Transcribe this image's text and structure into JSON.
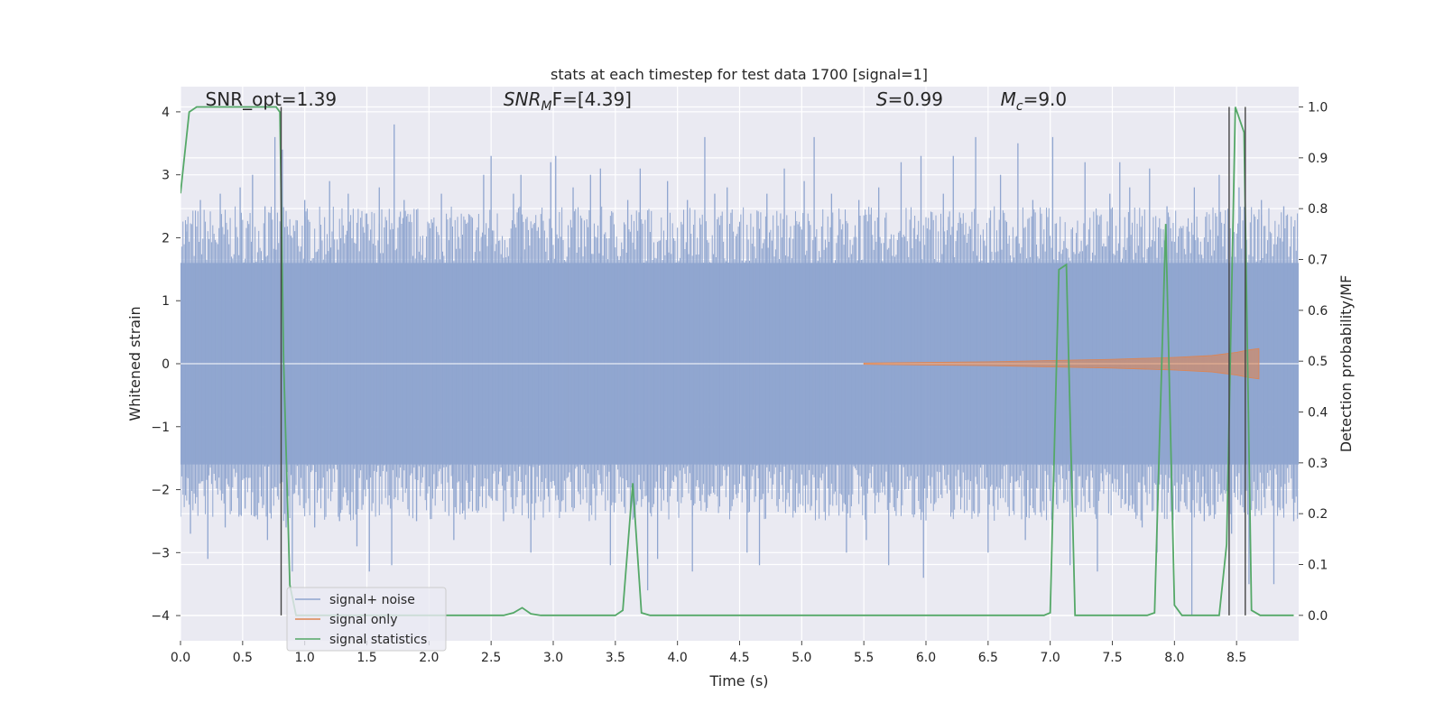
{
  "chart_data": {
    "type": "line",
    "title": "stats at each timestep for test data 1700 [signal=1]",
    "xlabel": "Time (s)",
    "ylabel_left": "Whitened strain",
    "ylabel_right": "Detection probability/MF",
    "xlim": [
      0.0,
      9.0
    ],
    "ylim_left": [
      -4.4,
      4.4
    ],
    "ylim_right": [
      -0.05,
      1.04
    ],
    "x_ticks": [
      0.0,
      0.5,
      1.0,
      1.5,
      2.0,
      2.5,
      3.0,
      3.5,
      4.0,
      4.5,
      5.0,
      5.5,
      6.0,
      6.5,
      7.0,
      7.5,
      8.0,
      8.5
    ],
    "x_tick_labels": [
      "0.0",
      "0.5",
      "1.0",
      "1.5",
      "2.0",
      "2.5",
      "3.0",
      "3.5",
      "4.0",
      "4.5",
      "5.0",
      "5.5",
      "6.0",
      "6.5",
      "7.0",
      "7.5",
      "8.0",
      "8.5"
    ],
    "y_left_ticks": [
      -4,
      -3,
      -2,
      -1,
      0,
      1,
      2,
      3,
      4
    ],
    "y_left_tick_labels": [
      "−4",
      "−3",
      "−2",
      "−1",
      "0",
      "1",
      "2",
      "3",
      "4"
    ],
    "y_right_ticks": [
      0.0,
      0.1,
      0.2,
      0.3,
      0.4,
      0.5,
      0.6,
      0.7,
      0.8,
      0.9,
      1.0
    ],
    "y_right_tick_labels": [
      "0.0",
      "0.1",
      "0.2",
      "0.3",
      "0.4",
      "0.5",
      "0.6",
      "0.7",
      "0.8",
      "0.9",
      "1.0"
    ],
    "grid": true,
    "legend_position": "lower-left",
    "annotations": [
      {
        "label": "SNR_opt=1.39",
        "x": 0.2,
        "y": 4.1
      },
      {
        "label": "SNR_MF=[4.39]",
        "main": "SNR",
        "sub": "M",
        "rest": "F=[4.39]",
        "x": 2.6,
        "y": 4.1
      },
      {
        "label": "S=0.99",
        "main": "S",
        "rest": "=0.99",
        "x": 5.6,
        "y": 4.1
      },
      {
        "label": "M_c=9.0",
        "main": "M",
        "sub": "c",
        "rest": "=9.0",
        "x": 6.6,
        "y": 4.1
      }
    ],
    "vertical_lines_x": [
      0.81,
      8.44,
      8.57
    ],
    "series": [
      {
        "name": "signal+ noise",
        "color": "#8fa5cf",
        "axis": "left",
        "noise_band": [
          -1.6,
          1.6
        ],
        "peaks": [
          [
            0.05,
            2.1
          ],
          [
            0.05,
            -1.8
          ],
          [
            0.08,
            -2.7
          ],
          [
            0.16,
            2.6
          ],
          [
            0.22,
            -3.1
          ],
          [
            0.32,
            2.7
          ],
          [
            0.36,
            -2.6
          ],
          [
            0.48,
            2.8
          ],
          [
            0.52,
            -2.3
          ],
          [
            0.58,
            3.0
          ],
          [
            0.68,
            2.5
          ],
          [
            0.7,
            -2.8
          ],
          [
            0.76,
            3.6
          ],
          [
            0.82,
            3.4
          ],
          [
            0.85,
            -2.6
          ],
          [
            0.9,
            -3.3
          ],
          [
            1.0,
            2.6
          ],
          [
            1.08,
            -2.6
          ],
          [
            1.2,
            2.9
          ],
          [
            1.28,
            -2.5
          ],
          [
            1.35,
            2.7
          ],
          [
            1.42,
            -2.9
          ],
          [
            1.52,
            -3.3
          ],
          [
            1.6,
            2.8
          ],
          [
            1.7,
            -3.2
          ],
          [
            1.72,
            3.8
          ],
          [
            1.8,
            2.6
          ],
          [
            1.9,
            -2.5
          ],
          [
            2.1,
            2.7
          ],
          [
            2.2,
            -2.8
          ],
          [
            2.32,
            -2.3
          ],
          [
            2.44,
            3.0
          ],
          [
            2.5,
            3.3
          ],
          [
            2.6,
            -2.5
          ],
          [
            2.68,
            2.7
          ],
          [
            2.74,
            3.0
          ],
          [
            2.82,
            -3.0
          ],
          [
            2.98,
            3.2
          ],
          [
            3.02,
            3.3
          ],
          [
            3.16,
            2.8
          ],
          [
            3.3,
            3.0
          ],
          [
            3.38,
            3.1
          ],
          [
            3.46,
            -3.2
          ],
          [
            3.6,
            2.6
          ],
          [
            3.7,
            3.1
          ],
          [
            3.76,
            -3.6
          ],
          [
            3.84,
            -3.1
          ],
          [
            3.92,
            2.9
          ],
          [
            4.08,
            2.6
          ],
          [
            4.12,
            -3.3
          ],
          [
            4.22,
            3.6
          ],
          [
            4.3,
            2.7
          ],
          [
            4.4,
            2.8
          ],
          [
            4.56,
            -3.0
          ],
          [
            4.66,
            -3.2
          ],
          [
            4.72,
            2.7
          ],
          [
            4.86,
            3.1
          ],
          [
            5.02,
            2.9
          ],
          [
            5.1,
            3.6
          ],
          [
            5.24,
            2.7
          ],
          [
            5.36,
            -3.0
          ],
          [
            5.46,
            2.6
          ],
          [
            5.52,
            -2.8
          ],
          [
            5.62,
            2.8
          ],
          [
            5.7,
            -3.2
          ],
          [
            5.8,
            3.2
          ],
          [
            5.96,
            3.3
          ],
          [
            5.98,
            -3.4
          ],
          [
            6.14,
            2.7
          ],
          [
            6.22,
            3.3
          ],
          [
            6.4,
            3.6
          ],
          [
            6.5,
            -3.0
          ],
          [
            6.6,
            3.0
          ],
          [
            6.74,
            3.5
          ],
          [
            6.8,
            -2.8
          ],
          [
            6.86,
            2.6
          ],
          [
            7.02,
            3.6
          ],
          [
            7.16,
            -3.2
          ],
          [
            7.28,
            3.2
          ],
          [
            7.38,
            -3.3
          ],
          [
            7.48,
            2.7
          ],
          [
            7.56,
            3.2
          ],
          [
            7.64,
            2.8
          ],
          [
            7.74,
            -2.6
          ],
          [
            7.8,
            3.1
          ],
          [
            7.86,
            -3.0
          ],
          [
            7.94,
            2.5
          ],
          [
            8.14,
            -4.0
          ],
          [
            8.16,
            2.8
          ],
          [
            8.24,
            -2.5
          ],
          [
            8.36,
            3.0
          ],
          [
            8.46,
            -2.7
          ],
          [
            8.52,
            2.8
          ],
          [
            8.6,
            -3.5
          ],
          [
            8.7,
            2.6
          ],
          [
            8.8,
            -3.5
          ],
          [
            8.88,
            2.5
          ],
          [
            8.96,
            -2.5
          ]
        ]
      },
      {
        "name": "signal only",
        "color": "#dd8452",
        "axis": "left",
        "envelope": [
          [
            5.5,
            0.01
          ],
          [
            6.5,
            0.03
          ],
          [
            7.0,
            0.05
          ],
          [
            7.5,
            0.07
          ],
          [
            8.0,
            0.1
          ],
          [
            8.3,
            0.13
          ],
          [
            8.5,
            0.18
          ],
          [
            8.6,
            0.22
          ],
          [
            8.68,
            0.24
          ],
          [
            8.68,
            0.0
          ]
        ]
      },
      {
        "name": "signal statistics",
        "color": "#55a868",
        "axis": "right",
        "x": [
          0.0,
          0.07,
          0.13,
          0.4,
          0.77,
          0.8,
          0.83,
          0.88,
          0.93,
          2.6,
          2.68,
          2.75,
          2.82,
          2.9,
          3.5,
          3.56,
          3.64,
          3.71,
          3.78,
          6.95,
          7.0,
          7.07,
          7.13,
          7.2,
          7.27,
          7.78,
          7.84,
          7.93,
          8.0,
          8.06,
          8.36,
          8.42,
          8.49,
          8.56,
          8.62,
          8.69,
          8.96
        ],
        "y": [
          0.83,
          0.99,
          1.0,
          1.0,
          1.0,
          0.99,
          0.5,
          0.06,
          0.0,
          0.0,
          0.005,
          0.015,
          0.003,
          0.0,
          0.0,
          0.01,
          0.26,
          0.005,
          0.0,
          0.0,
          0.005,
          0.68,
          0.69,
          0.0,
          0.0,
          0.0,
          0.005,
          0.77,
          0.02,
          0.0,
          0.0,
          0.14,
          1.0,
          0.95,
          0.01,
          0.0,
          0.0
        ]
      }
    ]
  }
}
